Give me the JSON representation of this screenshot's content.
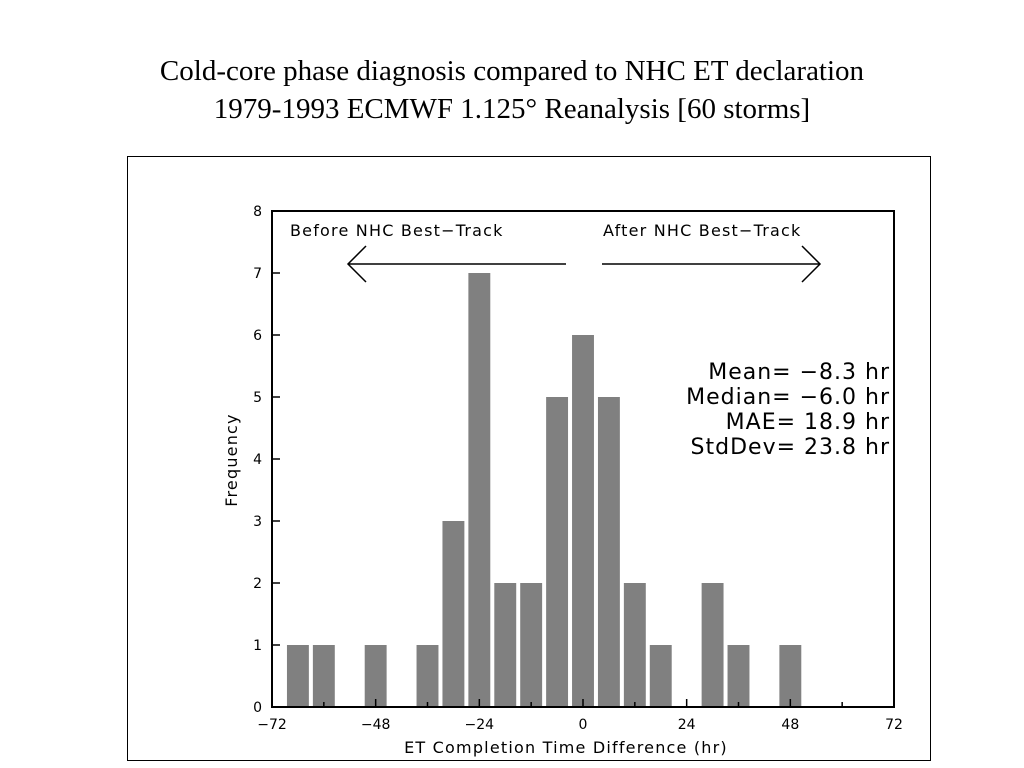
{
  "slide": {
    "title_line1": "Cold-core phase diagnosis compared to NHC ET declaration",
    "title_line2": "1979-1993 ECMWF 1.125° Reanalysis [60 storms]"
  },
  "annotations": {
    "before_text": "Before NHC Best−Track",
    "after_text": "After NHC Best−Track",
    "stats": [
      "Mean= −8.3 hr",
      "Median= −6.0 hr",
      "MAE= 18.9 hr",
      "StdDev= 23.8 hr"
    ]
  },
  "colors": {
    "bar": "#808080",
    "axis": "#000000"
  },
  "chart_data": {
    "type": "bar",
    "title": "",
    "xlabel": "ET Completion Time Difference (hr)",
    "ylabel": "Frequency",
    "xlim": [
      -72,
      72
    ],
    "ylim": [
      0,
      8
    ],
    "xticks": [
      -72,
      -48,
      -24,
      0,
      24,
      48,
      72
    ],
    "xtick_labels": [
      "−72",
      "−48",
      "−24",
      "0",
      "24",
      "48",
      "72"
    ],
    "yticks": [
      0,
      1,
      2,
      3,
      4,
      5,
      6,
      7,
      8
    ],
    "bin_width": 6,
    "bin_centers": [
      -66,
      -60,
      -54,
      -48,
      -42,
      -36,
      -30,
      -24,
      -18,
      -12,
      -6,
      0,
      6,
      12,
      18,
      24,
      30,
      36,
      42,
      48,
      54,
      60,
      66
    ],
    "values": [
      1,
      1,
      0,
      1,
      0,
      1,
      3,
      7,
      2,
      2,
      5,
      6,
      5,
      2,
      1,
      0,
      2,
      1,
      0,
      1,
      0,
      0,
      0
    ],
    "grid": false
  }
}
